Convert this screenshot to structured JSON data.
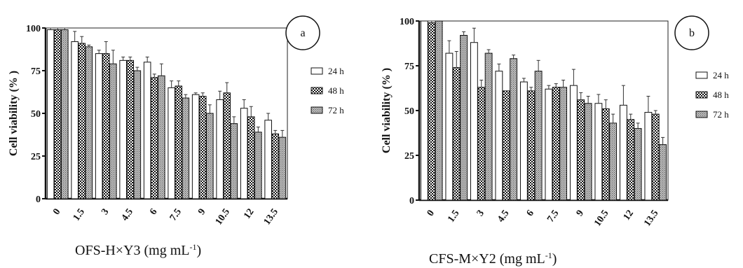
{
  "chart_data": [
    {
      "type": "bar",
      "panel_label": "a",
      "xlabel": "OFS-H×Y3 (mg mL-1)",
      "xlabel_main": "OFS-H×Y3 (mg mL",
      "xlabel_sup": "-1",
      "xlabel_close": ")",
      "ylabel": "Cell viability (% )",
      "ylim": [
        0,
        100
      ],
      "yticks": [
        "0",
        "25",
        "50",
        "75",
        "100"
      ],
      "categories": [
        "0",
        "1.5",
        "3",
        "4.5",
        "6",
        "7.5",
        "9",
        "10.5",
        "12",
        "13.5"
      ],
      "legend_position": "right",
      "series": [
        {
          "name": "24 h",
          "values": [
            99,
            92,
            85,
            81,
            80,
            65,
            61,
            58,
            53,
            46
          ],
          "errors": [
            1,
            6,
            2,
            2,
            3,
            4,
            1,
            5,
            5,
            4
          ]
        },
        {
          "name": "48 h",
          "values": [
            99,
            91,
            85,
            81,
            71,
            66,
            60,
            62,
            48,
            38
          ],
          "errors": [
            1,
            4,
            7,
            2,
            2,
            3,
            2,
            6,
            6,
            2
          ]
        },
        {
          "name": "72 h",
          "values": [
            99,
            89,
            79,
            75,
            72,
            59,
            50,
            44,
            39,
            36
          ],
          "errors": [
            1,
            1,
            8,
            2,
            7,
            2,
            5,
            4,
            3,
            4
          ]
        }
      ]
    },
    {
      "type": "bar",
      "panel_label": "b",
      "xlabel": "CFS-M×Y2 (mg mL-1)",
      "xlabel_main": "CFS-M×Y2 (mg mL",
      "xlabel_sup": "-1",
      "xlabel_close": ")",
      "ylabel": "Cell viability (% )",
      "ylim": [
        0,
        100
      ],
      "yticks": [
        "0",
        "25",
        "50",
        "75",
        "100"
      ],
      "categories": [
        "0",
        "1.5",
        "3",
        "4.5",
        "6",
        "7.5",
        "9",
        "10.5",
        "12",
        "13.5"
      ],
      "legend_position": "right",
      "series": [
        {
          "name": "24 h",
          "values": [
            100,
            82,
            88,
            72,
            66,
            62,
            64,
            54,
            53,
            49
          ],
          "errors": [
            0,
            7,
            8,
            4,
            2,
            2,
            9,
            5,
            11,
            9
          ]
        },
        {
          "name": "48 h",
          "values": [
            99,
            74,
            63,
            61,
            61,
            63,
            56,
            51,
            45,
            48
          ],
          "errors": [
            1,
            9,
            4,
            0,
            2,
            2,
            4,
            5,
            3,
            2
          ]
        },
        {
          "name": "72 h",
          "values": [
            100,
            92,
            82,
            79,
            72,
            63,
            54,
            43,
            40,
            31
          ],
          "errors": [
            0,
            2,
            2,
            2,
            6,
            4,
            4,
            5,
            3,
            4
          ]
        }
      ]
    }
  ]
}
